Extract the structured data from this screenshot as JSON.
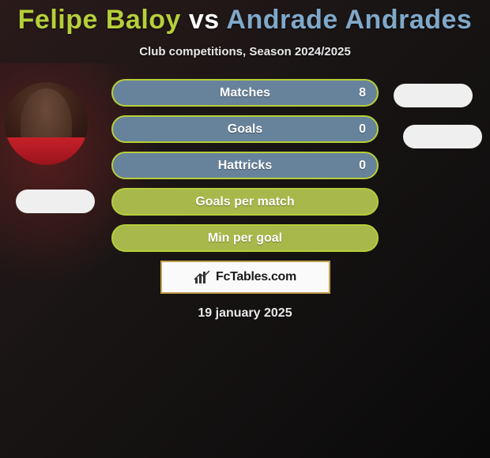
{
  "title": {
    "player1": "Felipe Baloy",
    "vs": "vs",
    "player2": "Andrade Andrades",
    "player1_color": "#b5cf3a",
    "vs_color": "#ffffff",
    "player2_color": "#7fa8c9"
  },
  "subtitle": "Club competitions, Season 2024/2025",
  "bars": [
    {
      "label": "Matches",
      "value": "8",
      "bg": "#67829b",
      "border": "#b5cf3a"
    },
    {
      "label": "Goals",
      "value": "0",
      "bg": "#67829b",
      "border": "#b5cf3a"
    },
    {
      "label": "Hattricks",
      "value": "0",
      "bg": "#67829b",
      "border": "#b5cf3a"
    },
    {
      "label": "Goals per match",
      "value": "",
      "bg": "#a8b84a",
      "border": "#b5cf3a"
    },
    {
      "label": "Min per goal",
      "value": "",
      "bg": "#a8b84a",
      "border": "#b5cf3a"
    }
  ],
  "side_pill_color": "#efefef",
  "logo": {
    "text": "FcTables.com",
    "border_color": "#c0a050"
  },
  "date": "19 january 2025"
}
